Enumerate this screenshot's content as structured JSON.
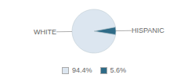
{
  "chart_data": {
    "type": "pie",
    "categories": [
      "WHITE",
      "HISPANIC"
    ],
    "values": [
      94.4,
      5.6
    ],
    "value_labels": [
      "94.4%",
      "5.6%"
    ],
    "colors": [
      "#dce6f0",
      "#2e6b87"
    ],
    "legend": "bottom"
  }
}
